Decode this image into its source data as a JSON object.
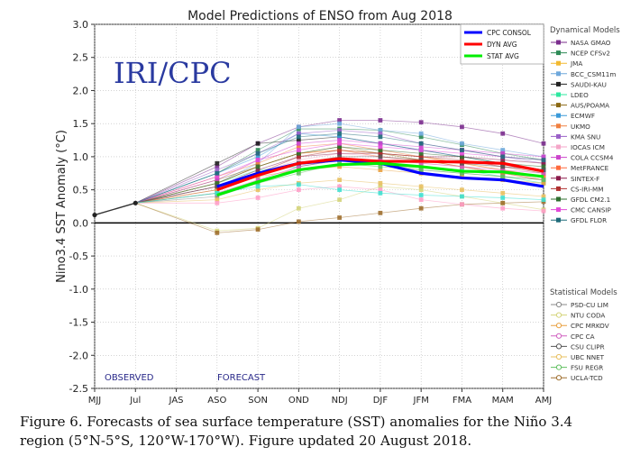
{
  "caption": "Figure 6. Forecasts of sea surface temperature (SST) anomalies for the Niño 3.4 region (5°N-5°S, 120°W-170°W). Figure updated 20 August 2018.",
  "chart_data": {
    "type": "line",
    "title": "Model Predictions of ENSO from Aug 2018",
    "watermark": "IRI/CPC",
    "ylabel": "Nino3.4 SST Anomaly (°C)",
    "xlabel": "",
    "ylim": [
      -2.5,
      3.0
    ],
    "yticks": [
      -2.5,
      -2.0,
      -1.5,
      -1.0,
      -0.5,
      0.0,
      0.5,
      1.0,
      1.5,
      2.0,
      2.5,
      3.0
    ],
    "categories": [
      "MJJ",
      "Jul",
      "JAS",
      "ASO",
      "SON",
      "OND",
      "NDJ",
      "DJF",
      "JFM",
      "FMA",
      "MAM",
      "AMJ"
    ],
    "observed_label": "OBSERVED",
    "forecast_label": "FORECAST",
    "grid": true,
    "observed": [
      0.12,
      0.3
    ],
    "legend_dynamical_title": "Dynamical Models",
    "legend_statistical_title": "Statistical Models",
    "summary_series": [
      {
        "name": "CPC CONSOL",
        "color": "#0000ff",
        "values": [
          0.55,
          0.75,
          0.9,
          0.95,
          0.9,
          0.75,
          0.68,
          0.65,
          0.55
        ]
      },
      {
        "name": "DYN AVG",
        "color": "#ff0000",
        "values": [
          0.5,
          0.72,
          0.9,
          0.97,
          0.93,
          0.93,
          0.92,
          0.9,
          0.78
        ]
      },
      {
        "name": "STAT AVG",
        "color": "#00ee00",
        "values": [
          0.42,
          0.62,
          0.8,
          0.88,
          0.9,
          0.85,
          0.78,
          0.77,
          0.7
        ]
      }
    ],
    "dynamical_series": [
      {
        "name": "NASA GMAO",
        "color": "#7b2d8e",
        "values": [
          0.85,
          1.2,
          1.45,
          1.55,
          1.55,
          1.52,
          1.45,
          1.35,
          1.2
        ]
      },
      {
        "name": "NCEP CFSv2",
        "color": "#2e8b57",
        "values": [
          0.75,
          1.1,
          1.42,
          1.42,
          1.4,
          1.3,
          1.18,
          1.05,
          0.95
        ]
      },
      {
        "name": "JMA",
        "color": "#f2b930",
        "values": [
          0.6,
          0.85,
          1.05,
          1.1,
          1.05,
          1.0,
          0.9,
          0.8,
          0.7
        ]
      },
      {
        "name": "BCC_CSM11m",
        "color": "#6fa8dc",
        "values": [
          0.6,
          0.9,
          1.45,
          1.5,
          1.4,
          1.35,
          1.2,
          1.1,
          1.0
        ]
      },
      {
        "name": "SAUDI-KAU",
        "color": "#222222",
        "values": [
          0.9,
          1.2,
          1.25,
          1.3,
          1.2,
          1.1,
          1.0,
          0.9,
          0.8
        ]
      },
      {
        "name": "LDEO",
        "color": "#2ee8a0",
        "values": [
          0.6,
          0.8,
          0.85,
          0.95,
          0.9,
          0.85,
          0.8,
          0.7,
          0.6
        ]
      },
      {
        "name": "AUS/POAMA",
        "color": "#8b6914",
        "values": [
          0.65,
          0.85,
          1.05,
          1.15,
          1.05,
          0.95,
          0.85,
          0.75,
          0.65
        ]
      },
      {
        "name": "ECMWF",
        "color": "#3a9ad9",
        "values": [
          0.75,
          1.0,
          1.35,
          1.3,
          1.2,
          1.1,
          1.0,
          0.9,
          0.8
        ]
      },
      {
        "name": "UKMO",
        "color": "#f08040",
        "values": [
          0.7,
          0.9,
          1.15,
          1.2,
          1.1,
          1.0,
          0.9,
          0.8,
          0.7
        ]
      },
      {
        "name": "KMA SNU",
        "color": "#9a60c8",
        "values": [
          0.8,
          1.05,
          1.35,
          1.4,
          1.35,
          1.2,
          1.1,
          1.0,
          0.9
        ]
      },
      {
        "name": "IOCAS ICM",
        "color": "#f4a6c8",
        "values": [
          0.55,
          0.75,
          0.95,
          1.05,
          1.0,
          0.9,
          0.85,
          0.75,
          0.65
        ]
      },
      {
        "name": "COLA CCSM4",
        "color": "#cc44cc",
        "values": [
          0.65,
          0.95,
          1.2,
          1.25,
          1.2,
          1.15,
          1.1,
          1.05,
          1.0
        ]
      },
      {
        "name": "MetFRANCE",
        "color": "#ff6a3d",
        "values": [
          0.6,
          0.85,
          1.05,
          1.1,
          1.0,
          0.95,
          0.85,
          0.75,
          0.65
        ]
      },
      {
        "name": "SINTEX-F",
        "color": "#8b1a4a",
        "values": [
          0.55,
          0.8,
          1.0,
          1.05,
          1.05,
          1.0,
          1.0,
          0.95,
          0.9
        ]
      },
      {
        "name": "CS-IRI-MM",
        "color": "#b03030",
        "values": [
          0.5,
          0.75,
          1.0,
          1.1,
          1.05,
          1.0,
          0.95,
          0.85,
          0.75
        ]
      },
      {
        "name": "GFDL CM2.1",
        "color": "#2f6f2f",
        "values": [
          0.6,
          0.85,
          1.05,
          1.15,
          1.1,
          1.05,
          1.0,
          0.9,
          0.85
        ]
      },
      {
        "name": "CMC CANSIP",
        "color": "#e24ad8",
        "values": [
          0.7,
          0.95,
          1.1,
          1.2,
          1.15,
          1.1,
          1.05,
          1.0,
          0.95
        ]
      },
      {
        "name": "GFDL FLOR",
        "color": "#1f6b7a",
        "values": [
          0.75,
          1.05,
          1.3,
          1.35,
          1.3,
          1.2,
          1.1,
          1.0,
          0.95
        ]
      }
    ],
    "statistical_series": [
      {
        "name": "PSD-CU LIM",
        "color": "#8a8a8a",
        "values": [
          0.4,
          0.6,
          0.85,
          0.95,
          0.9,
          0.8,
          0.75,
          0.7,
          0.65
        ]
      },
      {
        "name": "NTU CODA",
        "color": "#d4d47a",
        "values": [
          -0.12,
          -0.08,
          0.22,
          0.35,
          0.55,
          0.5,
          0.4,
          0.3,
          0.2
        ]
      },
      {
        "name": "CPC MRKOV",
        "color": "#e8a040",
        "values": [
          0.5,
          0.7,
          0.8,
          0.85,
          0.8,
          0.75,
          0.7,
          0.65,
          0.6
        ]
      },
      {
        "name": "CPC CA",
        "color": "#d060c0",
        "values": [
          0.45,
          0.65,
          0.85,
          0.95,
          0.95,
          0.9,
          0.85,
          0.8,
          0.75
        ]
      },
      {
        "name": "CSU CLIPR",
        "color": "#555555",
        "values": [
          0.55,
          0.75,
          0.9,
          1.0,
          1.0,
          0.95,
          0.9,
          0.85,
          0.8
        ]
      },
      {
        "name": "UBC NNET",
        "color": "#e8c060",
        "values": [
          0.35,
          0.5,
          0.6,
          0.65,
          0.6,
          0.55,
          0.5,
          0.45,
          0.4
        ]
      },
      {
        "name": "FSU REGR",
        "color": "#60c060",
        "values": [
          0.45,
          0.6,
          0.75,
          0.9,
          0.85,
          0.8,
          0.75,
          0.7,
          0.65
        ]
      },
      {
        "name": "UCLA-TCD",
        "color": "#a07030",
        "values": [
          -0.15,
          -0.1,
          0.02,
          0.08,
          0.15,
          0.22,
          0.28,
          0.3,
          0.32
        ]
      }
    ],
    "extra_series": [
      {
        "color": "#ff9ec8",
        "values": [
          0.3,
          0.38,
          0.5,
          0.55,
          0.5,
          0.35,
          0.28,
          0.22,
          0.18
        ]
      },
      {
        "color": "#40e0d0",
        "values": [
          0.45,
          0.55,
          0.58,
          0.5,
          0.45,
          0.42,
          0.4,
          0.38,
          0.35
        ]
      }
    ]
  }
}
